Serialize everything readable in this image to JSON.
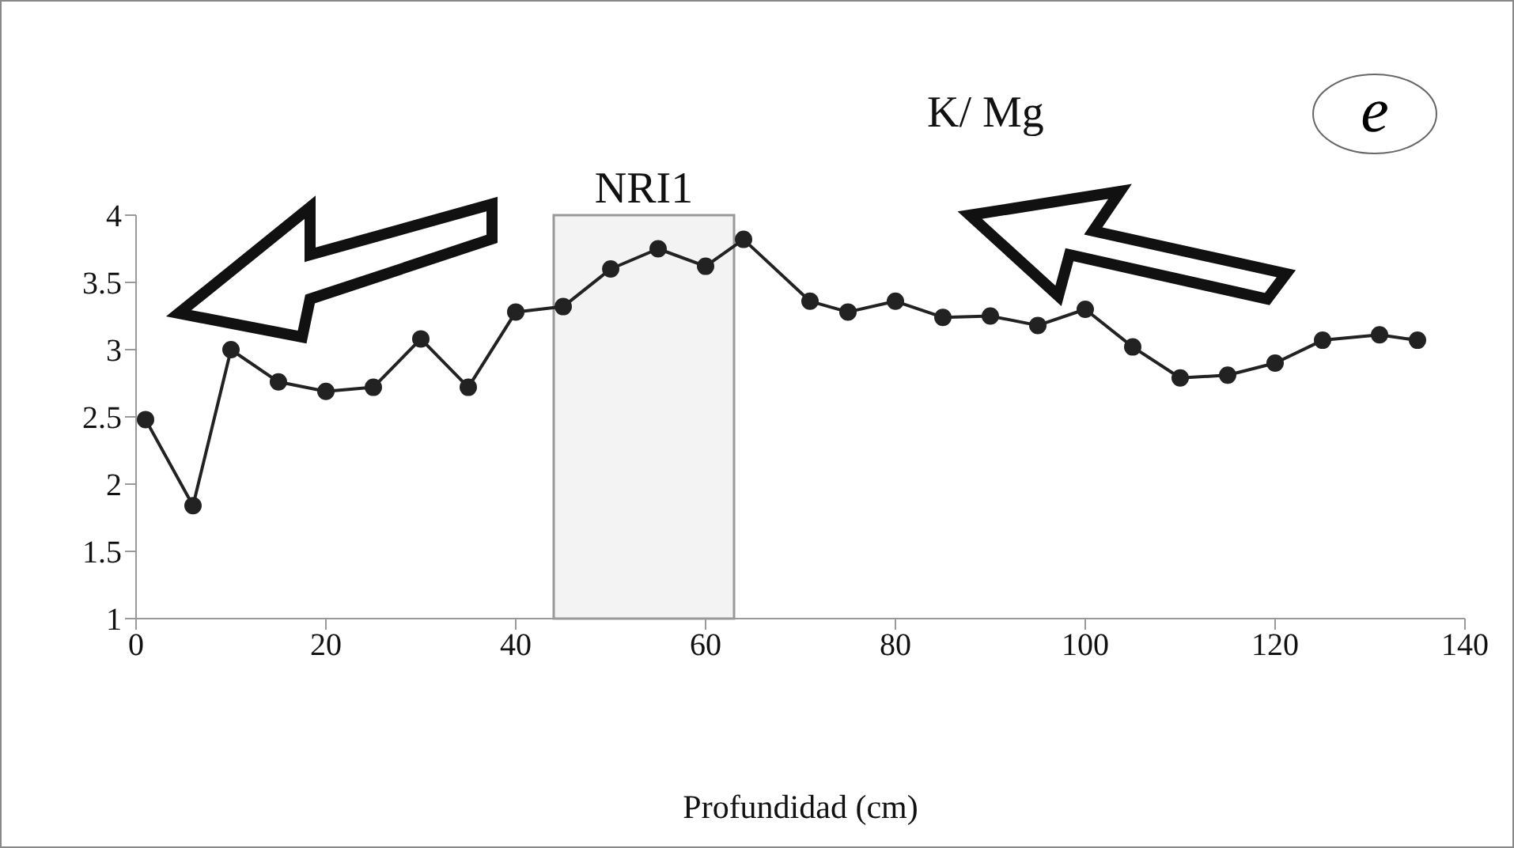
{
  "chart_data": {
    "type": "line",
    "title": "K/ Mg",
    "xlabel": "Profundidad (cm)",
    "x": [
      1,
      6,
      10,
      15,
      20,
      25,
      30,
      35,
      40,
      45,
      50,
      55,
      60,
      64,
      71,
      75,
      80,
      85,
      90,
      95,
      100,
      105,
      110,
      115,
      120,
      125,
      131,
      135
    ],
    "series": [
      {
        "color": "#222222",
        "values": [
          2.48,
          1.84,
          3.0,
          2.76,
          2.69,
          2.72,
          3.08,
          2.72,
          3.28,
          3.32,
          3.6,
          3.75,
          3.62,
          3.82,
          3.36,
          3.28,
          3.36,
          3.24,
          3.25,
          3.18,
          3.3,
          3.02,
          2.79,
          2.81,
          2.9,
          3.07,
          3.11,
          3.07
        ]
      }
    ],
    "xlim": [
      0,
      140
    ],
    "xticks": [
      0,
      20,
      40,
      60,
      80,
      100,
      120,
      140
    ],
    "ylim": [
      1,
      4
    ],
    "yticks": [
      1,
      1.5,
      2,
      2.5,
      3,
      3.5,
      4
    ],
    "bands": [
      {
        "axis": "x",
        "from": 44,
        "to": 63,
        "label": "NRI1",
        "color": "#999999"
      }
    ],
    "annotations": [
      "e"
    ],
    "grid": false,
    "legend": false,
    "marker": "circle",
    "line_style": "solid"
  }
}
